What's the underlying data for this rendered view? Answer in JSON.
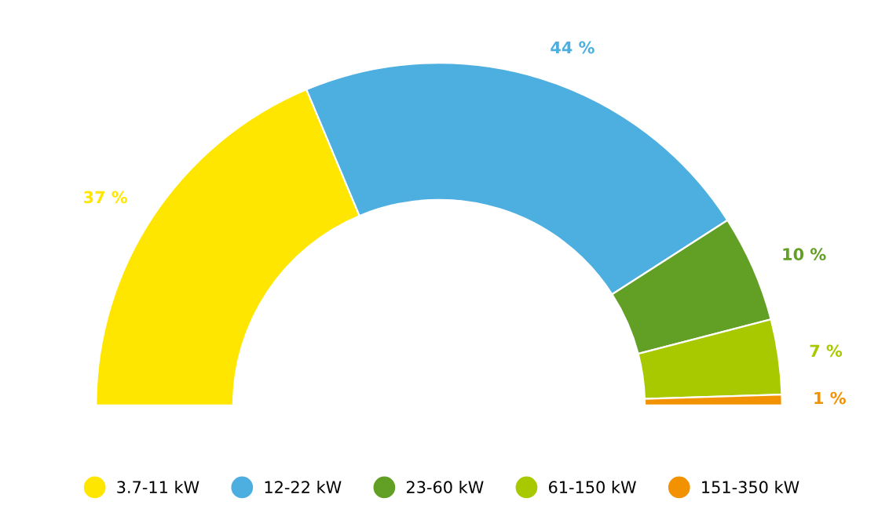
{
  "chart_data": {
    "type": "donut",
    "categories": [
      "3.7-11 kW",
      "12-22 kW",
      "23-60 kW",
      "61-150 kW",
      "151-350 kW"
    ],
    "values": [
      37,
      44,
      10,
      7,
      1
    ],
    "value_labels": [
      "37 %",
      "44 %",
      "10 %",
      "7 %",
      "1 %"
    ],
    "colors": [
      "#ffe600",
      "#4daee0",
      "#629f25",
      "#a8c800",
      "#f39200"
    ],
    "legend": "bottom"
  }
}
